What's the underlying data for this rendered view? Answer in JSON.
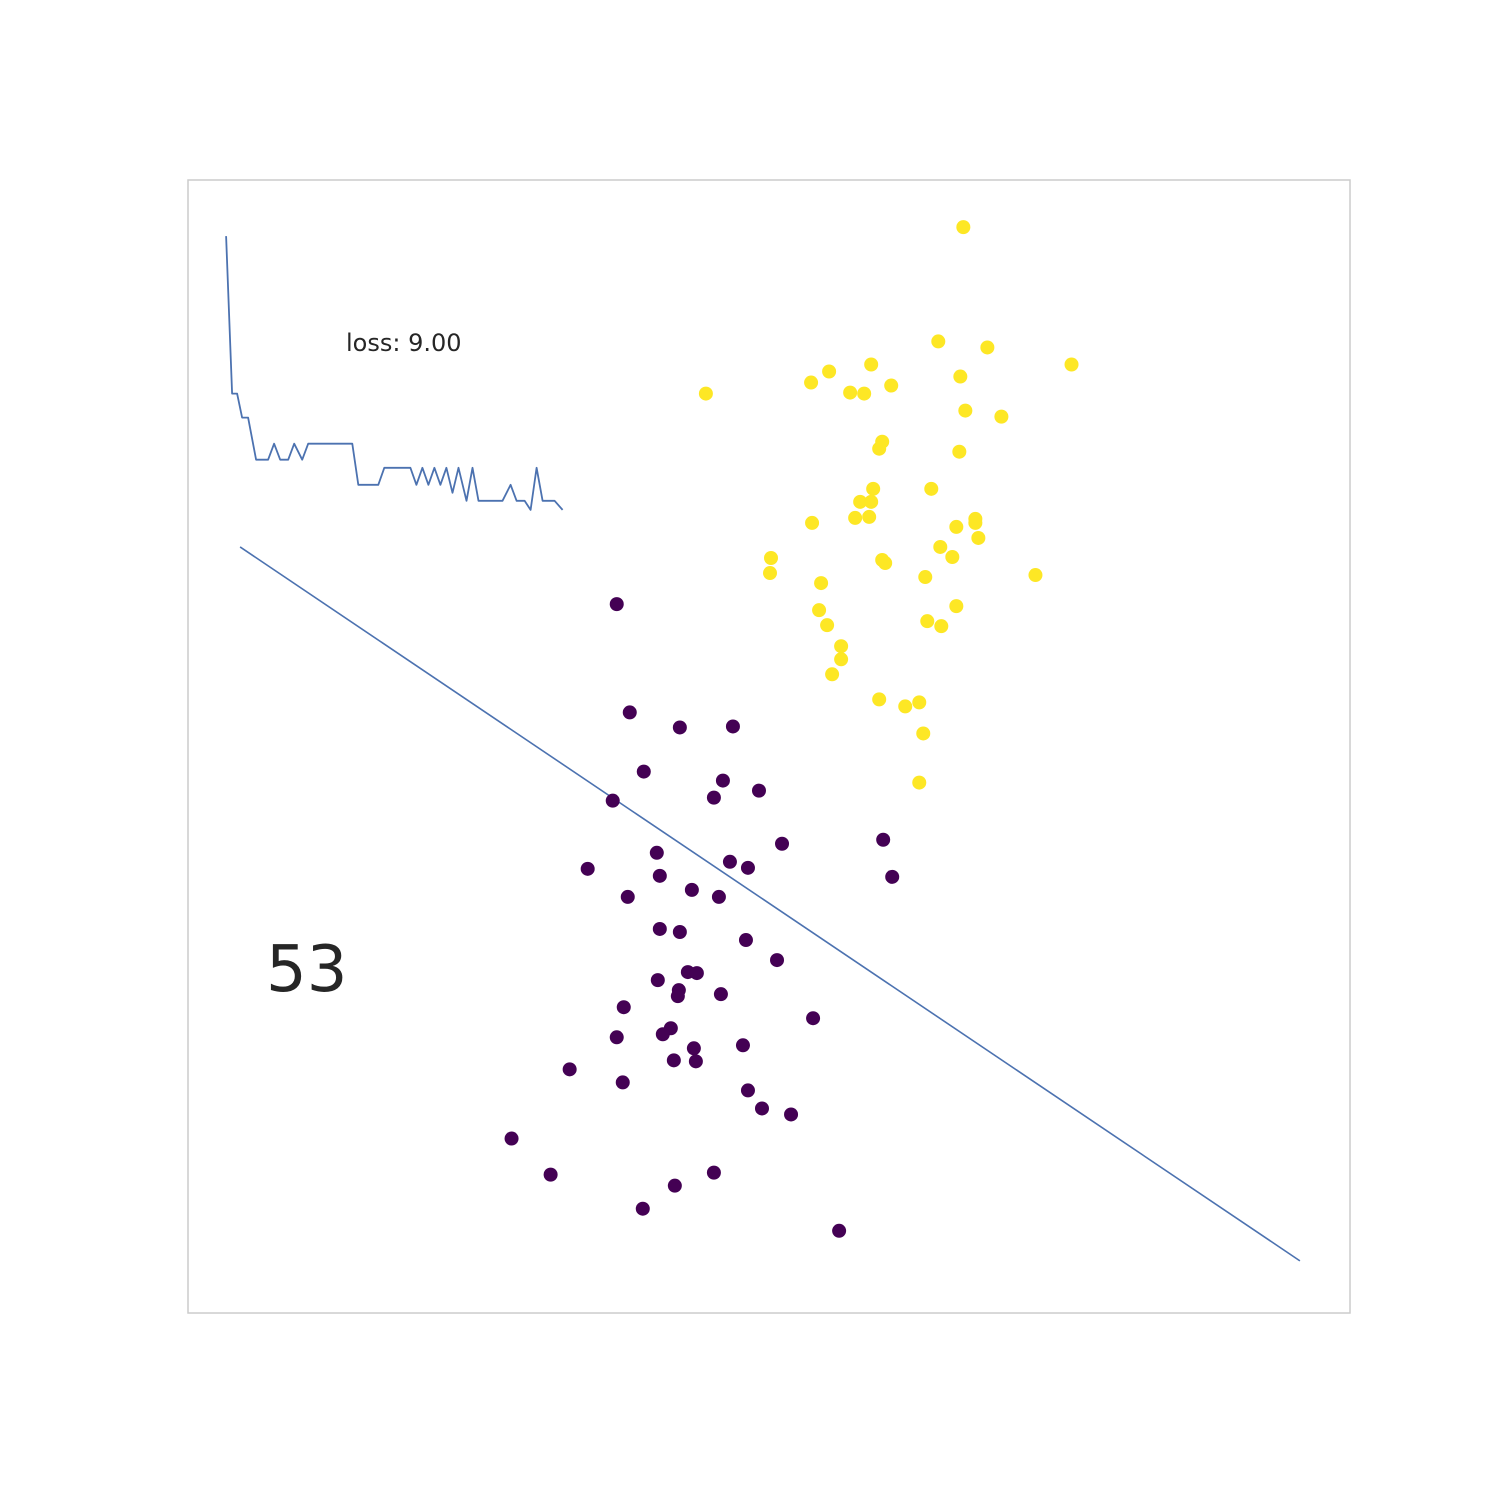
{
  "chart_data": {
    "type": "scatter",
    "title": "",
    "xlabel": "",
    "ylabel": "",
    "grid": false,
    "xlim": [
      0,
      1160
    ],
    "ylim": [
      0,
      1130
    ],
    "colors": {
      "frame": "#cccccc",
      "class_0": "#440154",
      "class_1": "#fde725",
      "line": "#4c72b0",
      "text": "#262626"
    },
    "annotations": {
      "loss_label": "loss: 9.00",
      "iteration_label": "53"
    },
    "decision_boundary": {
      "x": [
        52,
        1110
      ],
      "y": [
        764,
        52
      ]
    },
    "loss_curve": [
      {
        "x": 38,
        "y": 1074
      },
      {
        "x": 44,
        "y": 917
      },
      {
        "x": 49,
        "y": 917
      },
      {
        "x": 54,
        "y": 893
      },
      {
        "x": 60,
        "y": 893
      },
      {
        "x": 68,
        "y": 851
      },
      {
        "x": 80,
        "y": 851
      },
      {
        "x": 86,
        "y": 867
      },
      {
        "x": 92,
        "y": 851
      },
      {
        "x": 100,
        "y": 851
      },
      {
        "x": 106,
        "y": 867
      },
      {
        "x": 114,
        "y": 851
      },
      {
        "x": 120,
        "y": 867
      },
      {
        "x": 164,
        "y": 867
      },
      {
        "x": 170,
        "y": 826
      },
      {
        "x": 190,
        "y": 826
      },
      {
        "x": 196,
        "y": 843
      },
      {
        "x": 222,
        "y": 843
      },
      {
        "x": 228,
        "y": 826
      },
      {
        "x": 234,
        "y": 843
      },
      {
        "x": 240,
        "y": 826
      },
      {
        "x": 246,
        "y": 843
      },
      {
        "x": 252,
        "y": 826
      },
      {
        "x": 258,
        "y": 843
      },
      {
        "x": 264,
        "y": 818
      },
      {
        "x": 270,
        "y": 843
      },
      {
        "x": 278,
        "y": 810
      },
      {
        "x": 284,
        "y": 843
      },
      {
        "x": 290,
        "y": 810
      },
      {
        "x": 314,
        "y": 810
      },
      {
        "x": 322,
        "y": 826
      },
      {
        "x": 328,
        "y": 810
      },
      {
        "x": 336,
        "y": 810
      },
      {
        "x": 342,
        "y": 801
      },
      {
        "x": 348,
        "y": 843
      },
      {
        "x": 354,
        "y": 810
      },
      {
        "x": 366,
        "y": 810
      },
      {
        "x": 374,
        "y": 801
      }
    ],
    "series": [
      {
        "class": 0,
        "points": [
          {
            "x": 428,
            "y": 707
          },
          {
            "x": 441,
            "y": 599
          },
          {
            "x": 491,
            "y": 584
          },
          {
            "x": 544,
            "y": 585
          },
          {
            "x": 455,
            "y": 540
          },
          {
            "x": 534,
            "y": 531
          },
          {
            "x": 525,
            "y": 514
          },
          {
            "x": 570,
            "y": 521
          },
          {
            "x": 424,
            "y": 511
          },
          {
            "x": 593,
            "y": 468
          },
          {
            "x": 468,
            "y": 459
          },
          {
            "x": 541,
            "y": 450
          },
          {
            "x": 559,
            "y": 444
          },
          {
            "x": 399,
            "y": 443
          },
          {
            "x": 471,
            "y": 436
          },
          {
            "x": 503,
            "y": 422
          },
          {
            "x": 439,
            "y": 415
          },
          {
            "x": 530,
            "y": 415
          },
          {
            "x": 471,
            "y": 383
          },
          {
            "x": 491,
            "y": 380
          },
          {
            "x": 557,
            "y": 372
          },
          {
            "x": 588,
            "y": 352
          },
          {
            "x": 499,
            "y": 340
          },
          {
            "x": 508,
            "y": 339
          },
          {
            "x": 469,
            "y": 332
          },
          {
            "x": 490,
            "y": 322
          },
          {
            "x": 489,
            "y": 316
          },
          {
            "x": 532,
            "y": 318
          },
          {
            "x": 435,
            "y": 305
          },
          {
            "x": 624,
            "y": 294
          },
          {
            "x": 482,
            "y": 284
          },
          {
            "x": 474,
            "y": 278
          },
          {
            "x": 428,
            "y": 275
          },
          {
            "x": 505,
            "y": 264
          },
          {
            "x": 554,
            "y": 267
          },
          {
            "x": 485,
            "y": 252
          },
          {
            "x": 507,
            "y": 251
          },
          {
            "x": 381,
            "y": 243
          },
          {
            "x": 434,
            "y": 230
          },
          {
            "x": 559,
            "y": 222
          },
          {
            "x": 573,
            "y": 204
          },
          {
            "x": 602,
            "y": 198
          },
          {
            "x": 323,
            "y": 174
          },
          {
            "x": 362,
            "y": 138
          },
          {
            "x": 525,
            "y": 140
          },
          {
            "x": 486,
            "y": 127
          },
          {
            "x": 454,
            "y": 104
          },
          {
            "x": 650,
            "y": 82
          },
          {
            "x": 694,
            "y": 472
          },
          {
            "x": 703,
            "y": 435
          }
        ]
      },
      {
        "class": 1,
        "points": [
          {
            "x": 774,
            "y": 1083
          },
          {
            "x": 749,
            "y": 969
          },
          {
            "x": 798,
            "y": 963
          },
          {
            "x": 882,
            "y": 946
          },
          {
            "x": 517,
            "y": 917
          },
          {
            "x": 622,
            "y": 928
          },
          {
            "x": 640,
            "y": 939
          },
          {
            "x": 682,
            "y": 946
          },
          {
            "x": 661,
            "y": 918
          },
          {
            "x": 675,
            "y": 917
          },
          {
            "x": 702,
            "y": 925
          },
          {
            "x": 771,
            "y": 934
          },
          {
            "x": 776,
            "y": 900
          },
          {
            "x": 812,
            "y": 894
          },
          {
            "x": 693,
            "y": 869
          },
          {
            "x": 690,
            "y": 862
          },
          {
            "x": 770,
            "y": 859
          },
          {
            "x": 684,
            "y": 822
          },
          {
            "x": 742,
            "y": 822
          },
          {
            "x": 671,
            "y": 809
          },
          {
            "x": 682,
            "y": 809
          },
          {
            "x": 623,
            "y": 788
          },
          {
            "x": 666,
            "y": 793
          },
          {
            "x": 680,
            "y": 794
          },
          {
            "x": 786,
            "y": 792
          },
          {
            "x": 767,
            "y": 784
          },
          {
            "x": 786,
            "y": 788
          },
          {
            "x": 789,
            "y": 773
          },
          {
            "x": 751,
            "y": 764
          },
          {
            "x": 763,
            "y": 754
          },
          {
            "x": 582,
            "y": 753
          },
          {
            "x": 581,
            "y": 738
          },
          {
            "x": 693,
            "y": 751
          },
          {
            "x": 696,
            "y": 748
          },
          {
            "x": 736,
            "y": 734
          },
          {
            "x": 846,
            "y": 736
          },
          {
            "x": 632,
            "y": 728
          },
          {
            "x": 630,
            "y": 701
          },
          {
            "x": 767,
            "y": 705
          },
          {
            "x": 738,
            "y": 690
          },
          {
            "x": 752,
            "y": 685
          },
          {
            "x": 638,
            "y": 686
          },
          {
            "x": 652,
            "y": 665
          },
          {
            "x": 652,
            "y": 652
          },
          {
            "x": 643,
            "y": 637
          },
          {
            "x": 690,
            "y": 612
          },
          {
            "x": 716,
            "y": 605
          },
          {
            "x": 730,
            "y": 609
          },
          {
            "x": 734,
            "y": 578
          },
          {
            "x": 730,
            "y": 529
          }
        ]
      }
    ]
  }
}
